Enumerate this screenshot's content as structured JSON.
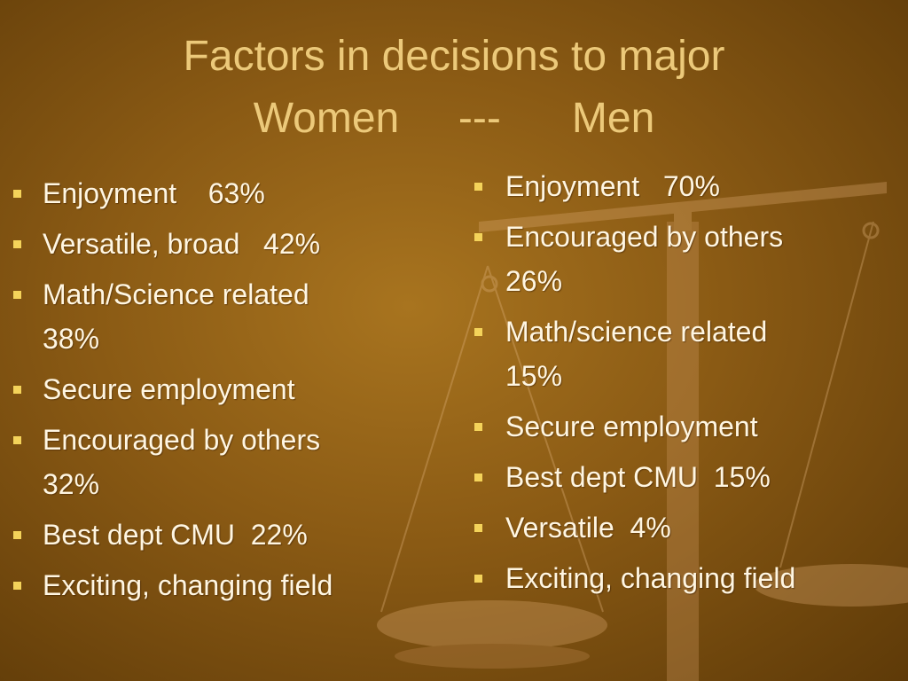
{
  "title": {
    "line1": "Factors in decisions to major",
    "line2": "Women     ---      Men"
  },
  "columns": [
    {
      "items": [
        {
          "lines": [
            "Enjoyment    63%"
          ]
        },
        {
          "lines": [
            "Versatile, broad   42%"
          ]
        },
        {
          "lines": [
            "Math/Science related",
            "38%"
          ]
        },
        {
          "lines": [
            "Secure employment"
          ]
        },
        {
          "lines": [
            "Encouraged by others",
            "32%"
          ]
        },
        {
          "lines": [
            "Best dept CMU  22%"
          ]
        },
        {
          "lines": [
            "Exciting, changing field"
          ]
        }
      ]
    },
    {
      "items": [
        {
          "lines": [
            "Enjoyment   70%"
          ]
        },
        {
          "lines": [
            "Encouraged by others",
            "26%"
          ]
        },
        {
          "lines": [
            "Math/science related",
            "15%"
          ]
        },
        {
          "lines": [
            "Secure employment"
          ]
        },
        {
          "lines": [
            "Best dept CMU  15%"
          ]
        },
        {
          "lines": [
            "Versatile  4%"
          ]
        },
        {
          "lines": [
            "Exciting, changing field"
          ]
        }
      ]
    }
  ]
}
